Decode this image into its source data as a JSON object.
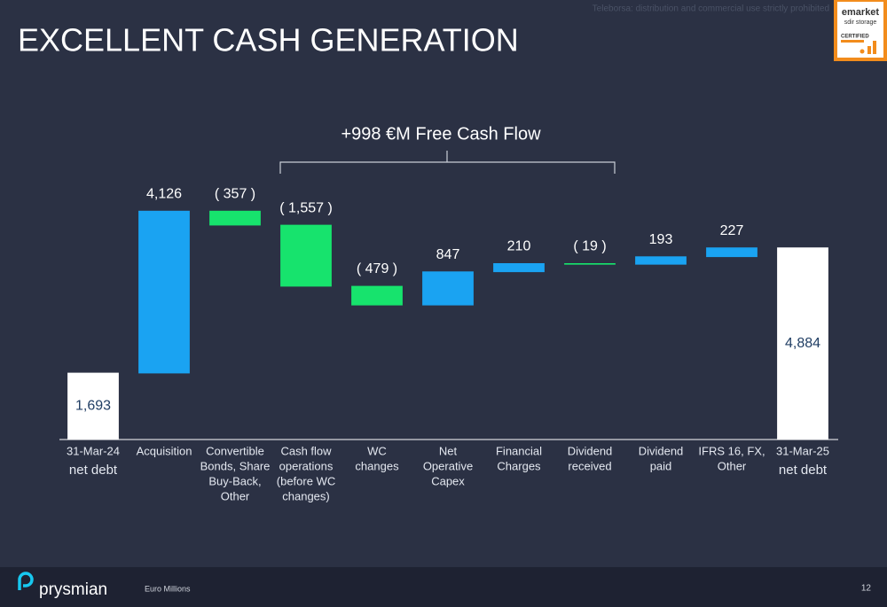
{
  "header": {
    "title": "EXCELLENT CASH GENERATION",
    "watermark": "Teleborsa: distribution and commercial use strictly prohibited"
  },
  "badge": {
    "name": "emarket",
    "sub": "sdir storage",
    "status": "CERTIFIED"
  },
  "chart_data": {
    "type": "waterfall",
    "annotation": "+998 €M Free Cash Flow",
    "categories": [
      [
        "31-Mar-24",
        "net debt"
      ],
      [
        "Acquisition"
      ],
      [
        "Convertible",
        "Bonds, Share",
        "Buy-Back,",
        "Other"
      ],
      [
        "Cash flow",
        "operations",
        "(before WC",
        "changes)"
      ],
      [
        "WC",
        "changes"
      ],
      [
        "Net",
        "Operative",
        "Capex"
      ],
      [
        "Financial",
        "Charges"
      ],
      [
        "Dividend",
        "received"
      ],
      [
        "Dividend",
        "paid"
      ],
      [
        "IFRS 16, FX,",
        "Other"
      ],
      [
        "31-Mar-25",
        "net debt"
      ]
    ],
    "values": [
      1693,
      4126,
      -357,
      -1557,
      -479,
      847,
      210,
      -19,
      193,
      227,
      4884
    ],
    "value_labels": [
      "1,693",
      "4,126",
      "( 357 )",
      "( 1,557 )",
      "( 479 )",
      "847",
      "210",
      "( 19 )",
      "193",
      "227",
      "4,884"
    ],
    "measures": [
      "total",
      "relative",
      "relative",
      "relative",
      "relative",
      "relative",
      "relative",
      "relative",
      "relative",
      "relative",
      "total"
    ],
    "colors": {
      "increase": "#1aa3f2",
      "decrease": "#17e36d",
      "total": "#ffffff"
    }
  },
  "footer": {
    "brand": "prysmian",
    "unit": "Euro Millions",
    "page": "12"
  }
}
